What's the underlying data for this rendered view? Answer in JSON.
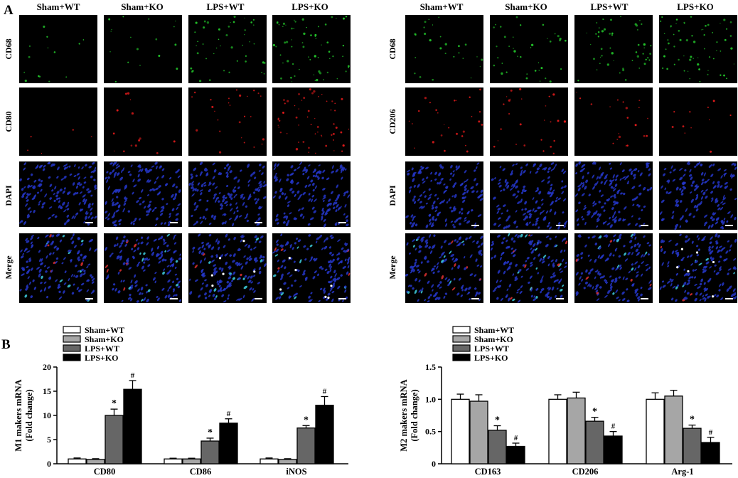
{
  "figure": {
    "panel_a_letter": "A",
    "panel_b_letter": "B",
    "groups": [
      "Sham+WT",
      "Sham+KO",
      "LPS+WT",
      "LPS+KO"
    ],
    "micrographs": [
      {
        "rows": [
          "CD68",
          "CD80",
          "DAPI",
          "Merge"
        ],
        "row_colors": [
          "#22c32a",
          "#e01a1a",
          "#2a3be0",
          "mixed"
        ],
        "signal_density": [
          [
            0.2,
            0.25,
            0.7,
            1.0
          ],
          [
            0.05,
            0.2,
            0.4,
            0.9
          ],
          [
            1,
            1,
            1,
            1
          ],
          [
            1,
            1,
            1,
            1
          ]
        ]
      },
      {
        "rows": [
          "CD68",
          "CD206",
          "DAPI",
          "Merge"
        ],
        "row_colors": [
          "#22c32a",
          "#e01a1a",
          "#2a3be0",
          "mixed"
        ],
        "signal_density": [
          [
            0.4,
            0.6,
            0.8,
            1.0
          ],
          [
            0.4,
            0.4,
            0.3,
            0.15
          ],
          [
            1,
            1,
            1,
            1
          ],
          [
            1,
            1,
            1,
            1
          ]
        ]
      }
    ]
  },
  "chart_data": [
    {
      "type": "bar",
      "ylabel_line1": "M1 makers mRNA",
      "ylabel_line2": "(Fold change)",
      "categories": [
        "CD80",
        "CD86",
        "iNOS"
      ],
      "ylim": [
        0,
        20
      ],
      "yticks": [
        "0",
        "5",
        "10",
        "15",
        "20"
      ],
      "series": [
        {
          "name": "Sham+WT",
          "values": [
            1.0,
            1.0,
            1.0
          ],
          "errors": [
            0.2,
            0.15,
            0.2
          ],
          "color": "#ffffff"
        },
        {
          "name": "Sham+KO",
          "values": [
            0.9,
            1.0,
            0.9
          ],
          "errors": [
            0.15,
            0.15,
            0.15
          ],
          "color": "#a6a6a6"
        },
        {
          "name": "LPS+WT",
          "values": [
            10.0,
            4.7,
            7.4
          ],
          "errors": [
            1.3,
            0.6,
            0.5
          ],
          "color": "#666666"
        },
        {
          "name": "LPS+KO",
          "values": [
            15.4,
            8.4,
            12.1
          ],
          "errors": [
            1.8,
            0.9,
            1.8
          ],
          "color": "#000000"
        }
      ],
      "annotations": [
        {
          "series": 2,
          "category": 0,
          "text": "*"
        },
        {
          "series": 3,
          "category": 0,
          "text": "#"
        },
        {
          "series": 2,
          "category": 1,
          "text": "*"
        },
        {
          "series": 3,
          "category": 1,
          "text": "#"
        },
        {
          "series": 2,
          "category": 2,
          "text": "*"
        },
        {
          "series": 3,
          "category": 2,
          "text": "#"
        }
      ],
      "legend": "top-left"
    },
    {
      "type": "bar",
      "ylabel_line1": "M2 makers mRNA",
      "ylabel_line2": "(Fold change)",
      "categories": [
        "CD163",
        "CD206",
        "Arg-1"
      ],
      "ylim": [
        0,
        1.5
      ],
      "yticks": [
        "0",
        "0.5",
        "1.0",
        "1.5"
      ],
      "series": [
        {
          "name": "Sham+WT",
          "values": [
            1.0,
            1.0,
            1.0
          ],
          "errors": [
            0.08,
            0.07,
            0.1
          ],
          "color": "#ffffff"
        },
        {
          "name": "Sham+KO",
          "values": [
            0.97,
            1.02,
            1.05
          ],
          "errors": [
            0.1,
            0.09,
            0.09
          ],
          "color": "#a6a6a6"
        },
        {
          "name": "LPS+WT",
          "values": [
            0.52,
            0.66,
            0.55
          ],
          "errors": [
            0.07,
            0.06,
            0.05
          ],
          "color": "#666666"
        },
        {
          "name": "LPS+KO",
          "values": [
            0.27,
            0.43,
            0.33
          ],
          "errors": [
            0.05,
            0.07,
            0.08
          ],
          "color": "#000000"
        }
      ],
      "annotations": [
        {
          "series": 2,
          "category": 0,
          "text": "*"
        },
        {
          "series": 3,
          "category": 0,
          "text": "#"
        },
        {
          "series": 2,
          "category": 1,
          "text": "*"
        },
        {
          "series": 3,
          "category": 1,
          "text": "#"
        },
        {
          "series": 2,
          "category": 2,
          "text": "*"
        },
        {
          "series": 3,
          "category": 2,
          "text": "#"
        }
      ],
      "legend": "top-left"
    }
  ]
}
